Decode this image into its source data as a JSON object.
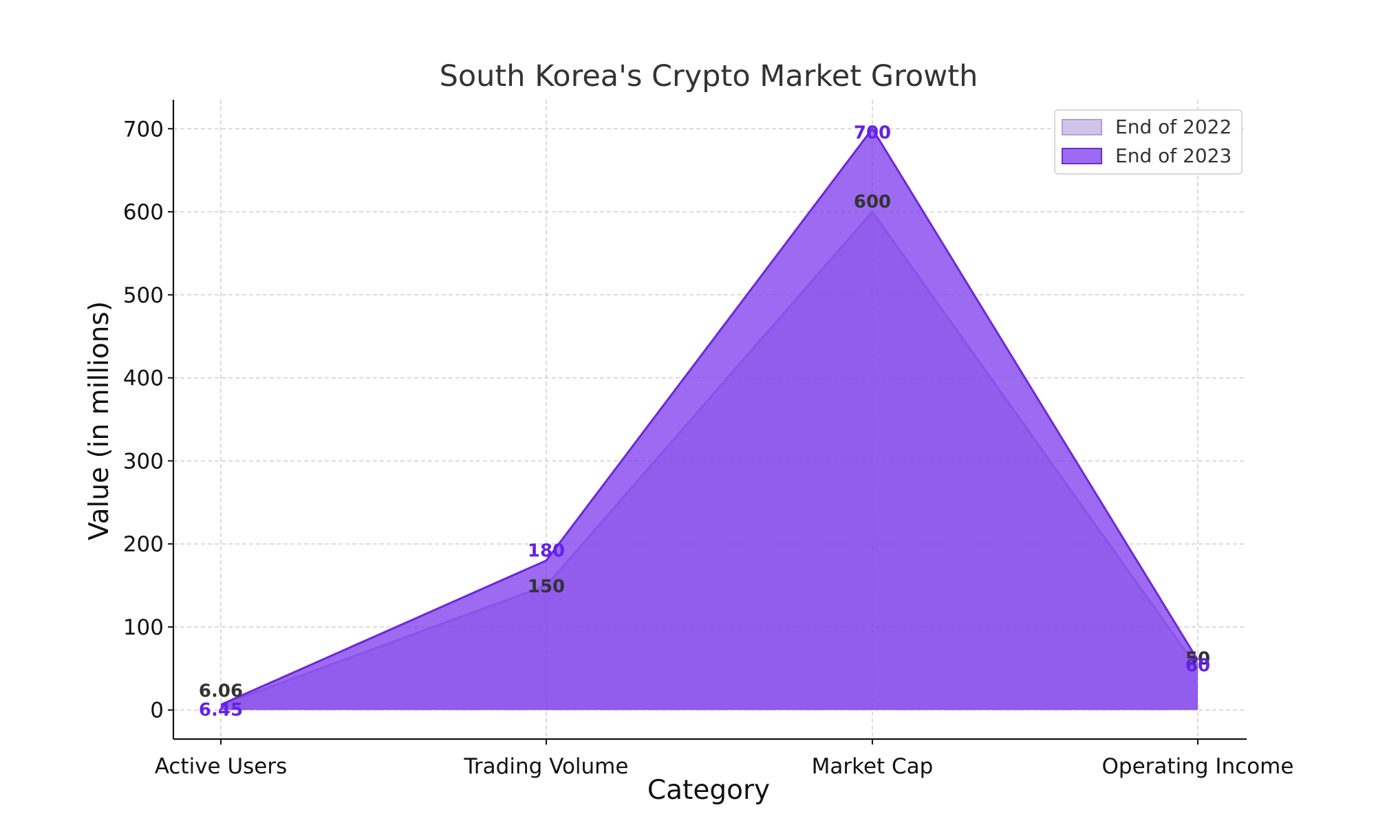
{
  "chart_data": {
    "type": "area",
    "title": "South Korea's Crypto Market Growth",
    "xlabel": "Category",
    "ylabel": "Value (in millions)",
    "categories": [
      "Active Users",
      "Trading Volume",
      "Market Cap",
      "Operating Income"
    ],
    "ylim": [
      -35,
      735
    ],
    "yticks": [
      0,
      100,
      200,
      300,
      400,
      500,
      600,
      700
    ],
    "grid": true,
    "legend_position": "top-right",
    "series": [
      {
        "name": "End of 2022",
        "values": [
          6.06,
          150,
          600,
          50
        ],
        "labels": [
          "6.06",
          "150",
          "600",
          "50"
        ],
        "fill_color": "#b39ddb",
        "fill_opacity": 0.6,
        "line_color": "#b39ddb",
        "label_color": "#333333"
      },
      {
        "name": "End of 2023",
        "values": [
          6.45,
          180,
          700,
          60
        ],
        "labels": [
          "6.45",
          "180",
          "700",
          "60"
        ],
        "fill_color": "#7c3aed",
        "fill_opacity": 0.75,
        "line_color": "#6d28d9",
        "label_color": "#6322e6"
      }
    ]
  }
}
